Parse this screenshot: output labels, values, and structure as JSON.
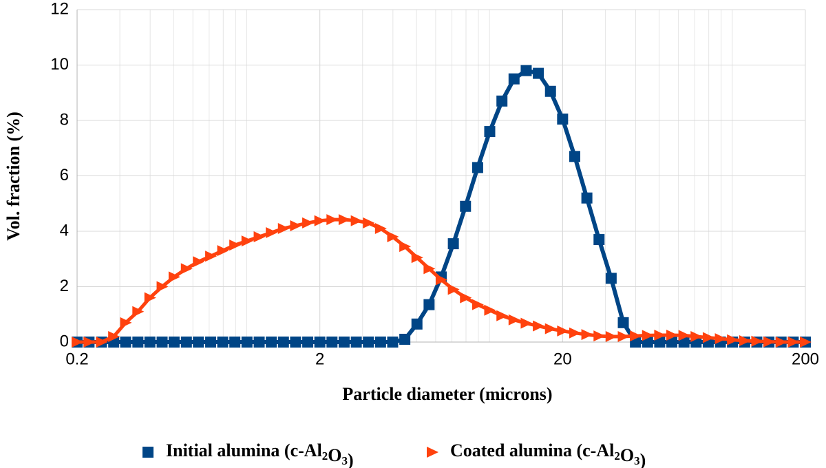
{
  "chart_data": {
    "type": "line",
    "x_label": "Particle diameter (microns)",
    "y_label": "Vol. fraction (%)",
    "x_scale": "log",
    "minor_grid": true,
    "grid": true,
    "legend": "bottom",
    "x": [
      0.2,
      0.224,
      0.252,
      0.283,
      0.317,
      0.356,
      0.399,
      0.448,
      0.502,
      0.564,
      0.632,
      0.71,
      0.796,
      0.893,
      1.002,
      1.125,
      1.262,
      1.416,
      1.589,
      1.783,
      2.0,
      2.244,
      2.518,
      2.826,
      3.17,
      3.557,
      3.991,
      4.478,
      5.024,
      5.637,
      6.325,
      7.096,
      7.962,
      8.934,
      10.02,
      11.25,
      12.62,
      14.16,
      15.89,
      17.83,
      20,
      22.44,
      25.18,
      28.26,
      31.7,
      35.57,
      39.91,
      44.78,
      50.24,
      56.37,
      63.25,
      70.96,
      79.62,
      89.34,
      100.2,
      112.5,
      126.2,
      141.6,
      158.9,
      178.3,
      200
    ],
    "series": [
      {
        "name": "Initial alumina (c-Al2O3)",
        "color": "#004586",
        "marker": "square",
        "values": [
          0,
          0,
          0,
          0,
          0,
          0,
          0,
          0,
          0,
          0,
          0,
          0,
          0,
          0,
          0,
          0,
          0,
          0,
          0,
          0,
          0,
          0,
          0,
          0,
          0,
          0,
          0,
          0.1,
          0.65,
          1.35,
          2.35,
          3.55,
          4.9,
          6.3,
          7.6,
          8.7,
          9.5,
          9.8,
          9.7,
          9.05,
          8.05,
          6.7,
          5.2,
          3.7,
          2.3,
          0.7,
          0,
          0,
          0,
          0,
          0,
          0,
          0,
          0,
          0,
          0,
          0,
          0,
          0,
          0,
          0
        ]
      },
      {
        "name": "Coated alumina (c-Al2O3)",
        "color": "#ff420e",
        "marker": "triangle-right",
        "values": [
          0,
          0,
          0,
          0.2,
          0.7,
          1.1,
          1.6,
          2.0,
          2.35,
          2.65,
          2.9,
          3.1,
          3.3,
          3.5,
          3.65,
          3.8,
          3.95,
          4.1,
          4.2,
          4.3,
          4.38,
          4.42,
          4.42,
          4.38,
          4.3,
          4.1,
          3.8,
          3.45,
          3.05,
          2.65,
          2.25,
          1.9,
          1.6,
          1.35,
          1.15,
          0.95,
          0.8,
          0.68,
          0.58,
          0.48,
          0.4,
          0.33,
          0.27,
          0.22,
          0.2,
          0.2,
          0.22,
          0.24,
          0.25,
          0.25,
          0.24,
          0.2,
          0.16,
          0.12,
          0.08,
          0.05,
          0.03,
          0.01,
          0,
          0,
          0
        ]
      }
    ],
    "xlim": [
      0.2,
      200
    ],
    "xticks": [
      0.2,
      2,
      20,
      200
    ],
    "ylim": [
      0,
      12
    ],
    "yticks": [
      0,
      2,
      4,
      6,
      8,
      10,
      12
    ]
  }
}
